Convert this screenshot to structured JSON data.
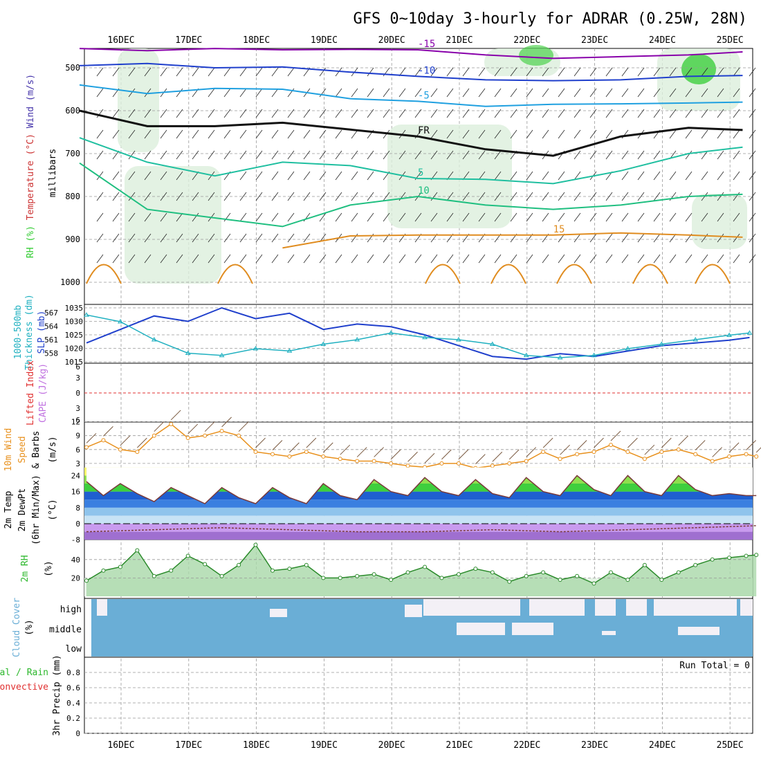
{
  "title": "GFS 0~10day 3-hourly for ADRAR (0.25W, 28N)",
  "colors": {
    "rh_green": "#33cc33",
    "temp_purple": "#8800aa",
    "temp_blue": "#1f3fcc",
    "temp_cyan": "#1fa0e0",
    "temp_teal": "#1fbfa0",
    "temp_green": "#1fbf80",
    "temp_orange": "#e08c1f",
    "thickness_color": "#1fb0c0",
    "slp_color": "#1f3fcc",
    "wind10_color": "#e8901c",
    "barb_color": "#7a5a40",
    "cloud_blue": "#6aaed6",
    "cloud_white": "#f3f0f6",
    "rh2m_color": "#2db82d",
    "lifted_color": "#e03030",
    "cape_color": "#c070e0"
  },
  "chart_data": [
    {
      "type": "line",
      "panel": "upper-air",
      "ylabel_parts": [
        "RH (%)",
        "Temperature (°C)",
        "Wind (m/s)"
      ],
      "yaxis_title": "millibars",
      "y_ticks": [
        500,
        600,
        700,
        800,
        900,
        1000
      ],
      "ylim": [
        1000,
        450
      ],
      "x_day_labels": [
        "16DEC",
        "17DEC",
        "18DEC",
        "19DEC",
        "20DEC",
        "21DEC",
        "22DEC",
        "23DEC",
        "24DEC",
        "25DEC"
      ],
      "isotherm_labels": [
        "-15",
        "-10",
        "-5",
        "FR",
        "5",
        "10",
        "15"
      ],
      "series": [
        {
          "name": "-15",
          "x_days": [
            0,
            1,
            2,
            3,
            4,
            5,
            6,
            7,
            8,
            9,
            9.8
          ],
          "values": [
            455,
            460,
            455,
            458,
            457,
            458,
            470,
            478,
            474,
            470,
            463
          ]
        },
        {
          "name": "-10",
          "x_days": [
            0,
            1,
            2,
            3,
            4,
            5,
            6,
            7,
            8,
            9,
            9.8
          ],
          "values": [
            495,
            490,
            500,
            498,
            510,
            520,
            528,
            530,
            528,
            520,
            518
          ]
        },
        {
          "name": "-5",
          "x_days": [
            0,
            1,
            2,
            3,
            4,
            5,
            6,
            7,
            8,
            9,
            9.8
          ],
          "values": [
            540,
            560,
            548,
            550,
            572,
            578,
            590,
            585,
            584,
            582,
            580
          ]
        },
        {
          "name": "FR",
          "x_days": [
            0,
            1,
            2,
            3,
            4,
            5,
            6,
            7,
            8,
            9,
            9.8
          ],
          "values": [
            600,
            636,
            636,
            628,
            644,
            660,
            690,
            705,
            660,
            640,
            645
          ]
        },
        {
          "name": "5",
          "x_days": [
            0,
            1,
            2,
            3,
            4,
            5,
            6,
            7,
            8,
            9,
            9.8
          ],
          "values": [
            663,
            720,
            752,
            720,
            728,
            758,
            760,
            770,
            740,
            700,
            685
          ]
        },
        {
          "name": "10",
          "x_days": [
            0,
            1,
            2,
            3,
            4,
            5,
            6,
            7,
            8,
            9,
            9.8
          ],
          "values": [
            722,
            830,
            850,
            870,
            820,
            800,
            820,
            830,
            820,
            800,
            795
          ]
        },
        {
          "name": "15",
          "x_days": [
            3,
            4,
            5,
            6,
            7,
            8,
            9,
            9.8
          ],
          "values": [
            920,
            892,
            890,
            890,
            890,
            885,
            890,
            895
          ]
        }
      ]
    },
    {
      "type": "line",
      "panel": "thickness-slp",
      "ylabel_parts": [
        "1000-500mb",
        "Thickness (dm)",
        "SLP (mb)"
      ],
      "left_ticks": [
        567,
        564,
        561,
        558
      ],
      "right_ticks": [
        1035,
        1030,
        1025,
        1020,
        1015
      ],
      "series": [
        {
          "name": "SLP (mb)",
          "x_days": [
            0,
            0.5,
            1,
            1.5,
            2,
            2.5,
            3,
            3.5,
            4,
            4.5,
            5,
            5.5,
            6,
            6.5,
            7,
            7.5,
            8,
            8.5,
            9,
            9.5,
            9.8
          ],
          "values": [
            1022,
            1027,
            1032,
            1030,
            1035,
            1031,
            1033,
            1027,
            1029,
            1028,
            1025,
            1021,
            1017,
            1016,
            1018,
            1017,
            1019,
            1021,
            1022,
            1023,
            1024
          ]
        },
        {
          "name": "Thickness (dm)",
          "x_days": [
            0,
            0.5,
            1,
            1.5,
            2,
            2.5,
            3,
            3.5,
            4,
            4.5,
            5,
            5.5,
            6,
            6.5,
            7,
            7.5,
            8,
            8.5,
            9,
            9.5,
            9.8
          ],
          "values": [
            566.5,
            565,
            561,
            558,
            557.5,
            559,
            558.5,
            560,
            561,
            562.5,
            561.5,
            561,
            560,
            557.5,
            557,
            557.5,
            559,
            560,
            561,
            562,
            562.5
          ]
        }
      ]
    },
    {
      "type": "line",
      "panel": "lifted-cape",
      "ylabel_parts": [
        "Lifted Index",
        "CAPE (J/kg)"
      ],
      "y_ticks": [
        6,
        3,
        0,
        3,
        6
      ],
      "series": [
        {
          "name": "Lifted Index",
          "values": [
            0
          ]
        }
      ]
    },
    {
      "type": "line",
      "panel": "wind10m",
      "ylabel_parts": [
        "10m Wind",
        "Speed",
        "& Barbs",
        "(m/s)"
      ],
      "y_ticks": [
        12,
        9,
        6,
        3
      ],
      "ylim": [
        0,
        12
      ],
      "series": [
        {
          "name": "10m Wind Speed",
          "x_days": [
            0,
            0.25,
            0.5,
            0.75,
            1,
            1.25,
            1.5,
            1.75,
            2,
            2.25,
            2.5,
            2.75,
            3,
            3.25,
            3.5,
            3.75,
            4,
            4.25,
            4.5,
            4.75,
            5,
            5.25,
            5.5,
            5.75,
            6,
            6.25,
            6.5,
            6.75,
            7,
            7.25,
            7.5,
            7.75,
            8,
            8.25,
            8.5,
            8.75,
            9,
            9.25,
            9.5,
            9.75,
            9.9
          ],
          "values": [
            6.5,
            8,
            6,
            5.5,
            9,
            11.5,
            8.5,
            9,
            10,
            9,
            5.5,
            5,
            4.5,
            5.5,
            4.5,
            4,
            3.5,
            3.5,
            3,
            2.5,
            2.2,
            3,
            3,
            2,
            2.5,
            3,
            3.5,
            5.5,
            4,
            5,
            5.5,
            7,
            5.5,
            4,
            5.5,
            6,
            5,
            3.5,
            4.5,
            5,
            4.5
          ]
        }
      ]
    },
    {
      "type": "area",
      "panel": "temp2m",
      "ylabel_parts": [
        "2m Temp",
        "2m DewPt",
        "(6hr Min/Max)",
        "(°C)"
      ],
      "y_ticks": [
        24,
        16,
        8,
        0,
        -8
      ],
      "ylim": [
        -8,
        26
      ],
      "series": [
        {
          "name": "2m Temp",
          "x_days": [
            0,
            0.25,
            0.5,
            0.75,
            1,
            1.25,
            1.5,
            1.75,
            2,
            2.25,
            2.5,
            2.75,
            3,
            3.25,
            3.5,
            3.75,
            4,
            4.25,
            4.5,
            4.75,
            5,
            5.25,
            5.5,
            5.75,
            6,
            6.25,
            6.5,
            6.75,
            7,
            7.25,
            7.5,
            7.75,
            8,
            8.25,
            8.5,
            8.75,
            9,
            9.25,
            9.5,
            9.75,
            9.9
          ],
          "values": [
            21,
            14,
            20,
            15,
            11,
            18,
            14,
            10,
            18,
            13,
            10,
            18,
            13,
            10,
            20,
            14,
            12,
            22,
            16,
            14,
            23,
            16,
            14,
            22,
            15,
            13,
            23,
            16,
            14,
            24,
            17,
            14,
            24,
            16,
            14,
            24,
            17,
            14,
            15,
            14,
            14
          ]
        },
        {
          "name": "2m DewPt",
          "x_days": [
            0,
            1,
            2,
            3,
            4,
            5,
            6,
            7,
            8,
            9,
            9.9
          ],
          "values": [
            -4,
            -3,
            -2,
            -3,
            -4,
            -4,
            -3,
            -4,
            -3,
            -2,
            -1
          ]
        }
      ]
    },
    {
      "type": "area",
      "panel": "rh2m",
      "ylabel_parts": [
        "2m RH",
        "(%)"
      ],
      "y_ticks": [
        40,
        20
      ],
      "ylim": [
        0,
        60
      ],
      "series": [
        {
          "name": "2m RH",
          "x_days": [
            0,
            0.25,
            0.5,
            0.75,
            1,
            1.25,
            1.5,
            1.75,
            2,
            2.25,
            2.5,
            2.75,
            3,
            3.25,
            3.5,
            3.75,
            4,
            4.25,
            4.5,
            4.75,
            5,
            5.25,
            5.5,
            5.75,
            6,
            6.25,
            6.5,
            6.75,
            7,
            7.25,
            7.5,
            7.75,
            8,
            8.25,
            8.5,
            8.75,
            9,
            9.25,
            9.5,
            9.75,
            9.9
          ],
          "values": [
            17,
            28,
            32,
            50,
            22,
            28,
            44,
            35,
            22,
            34,
            56,
            28,
            30,
            34,
            20,
            20,
            22,
            24,
            18,
            26,
            32,
            20,
            24,
            30,
            26,
            16,
            22,
            26,
            18,
            22,
            14,
            26,
            18,
            34,
            18,
            26,
            34,
            40,
            42,
            44,
            45
          ]
        }
      ]
    },
    {
      "type": "heatmap",
      "panel": "cloud-cover",
      "ylabel_parts": [
        "Cloud Cover",
        "(%)"
      ],
      "levels": [
        "high",
        "middle",
        "low"
      ]
    },
    {
      "type": "bar",
      "panel": "precip",
      "ylabel_parts": [
        "Total / Rain",
        "Convective",
        "3hr Precip (mm)"
      ],
      "y_ticks": [
        0.8,
        0.6,
        0.4,
        0.2,
        0
      ],
      "ylim": [
        0,
        1
      ],
      "run_total_label": "Run Total = 0",
      "values": []
    }
  ]
}
